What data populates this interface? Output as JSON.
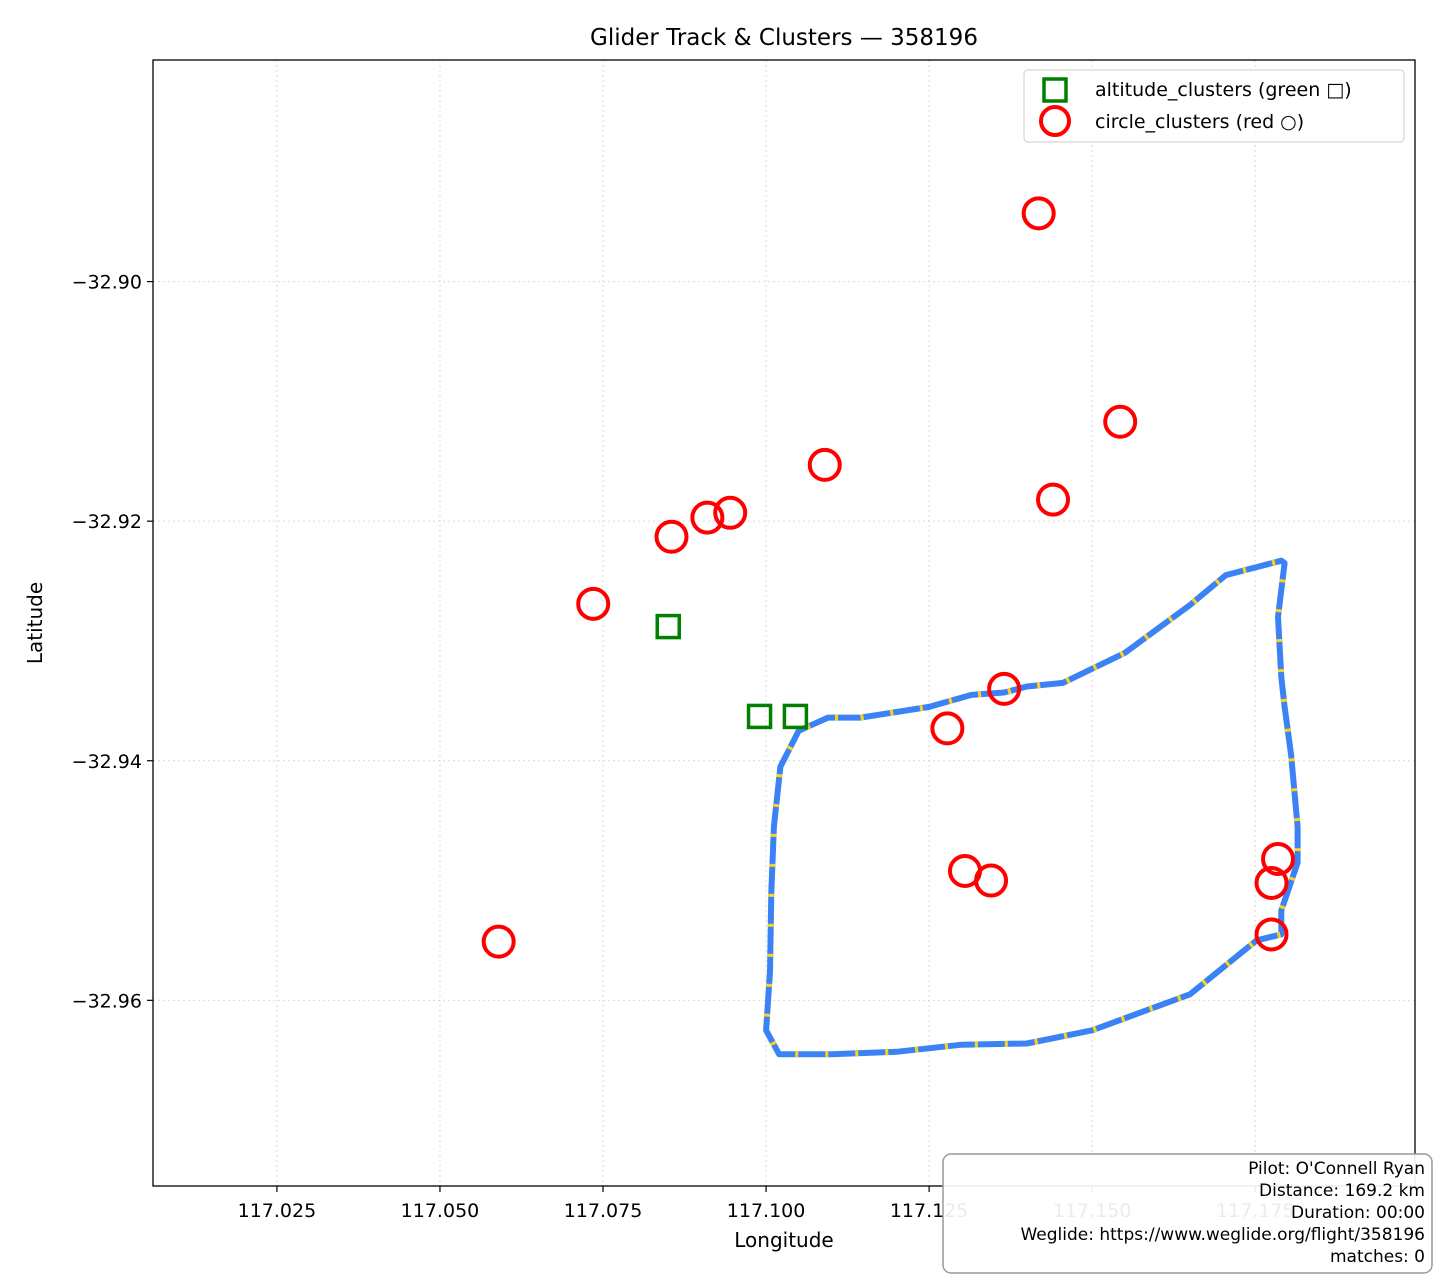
{
  "chart_data": {
    "type": "scatter",
    "title": "Glider Track & Clusters — 358196",
    "xlabel": "Longitude",
    "ylabel": "Latitude",
    "xlim": [
      117.006,
      117.1995
    ],
    "ylim": [
      -32.9755,
      -32.8815
    ],
    "xticks": [
      117.025,
      117.05,
      117.075,
      117.1,
      117.125,
      117.15,
      117.175
    ],
    "xtick_labels": [
      "117.025",
      "117.050",
      "117.075",
      "117.100",
      "117.125",
      "117.150",
      "117.175"
    ],
    "yticks": [
      -32.96,
      -32.94,
      -32.92,
      -32.9
    ],
    "ytick_labels": [
      "−32.96",
      "−32.94",
      "−32.92",
      "−32.90"
    ],
    "grid": true,
    "legend_position": "top-right",
    "colors": {
      "track": "#3b82f6",
      "track_alt": "#ffd21a",
      "altitude": "#008000",
      "circle": "#ff0000"
    },
    "series": [
      {
        "name": "altitude_clusters (green □)",
        "marker": "square",
        "points": [
          [
            117.085,
            -32.9288
          ],
          [
            117.099,
            -32.9363
          ],
          [
            117.1045,
            -32.9363
          ]
        ]
      },
      {
        "name": "circle_clusters (red ○)",
        "marker": "circle",
        "points": [
          [
            117.1418,
            -32.8943
          ],
          [
            117.1543,
            -32.9117
          ],
          [
            117.109,
            -32.9153
          ],
          [
            117.144,
            -32.9182
          ],
          [
            117.0855,
            -32.9213
          ],
          [
            117.091,
            -32.9197
          ],
          [
            117.0945,
            -32.9193
          ],
          [
            117.0735,
            -32.9269
          ],
          [
            117.1365,
            -32.934
          ],
          [
            117.1278,
            -32.9373
          ],
          [
            117.1305,
            -32.9492
          ],
          [
            117.1345,
            -32.95
          ],
          [
            117.1785,
            -32.9482
          ],
          [
            117.1775,
            -32.9502
          ],
          [
            117.1775,
            -32.9545
          ],
          [
            117.059,
            -32.9551
          ]
        ]
      }
    ],
    "track": [
      [
        117.1145,
        -32.9364
      ],
      [
        117.125,
        -32.9355
      ],
      [
        117.1315,
        -32.9345
      ],
      [
        117.1365,
        -32.9343
      ],
      [
        117.14,
        -32.9338
      ],
      [
        117.1455,
        -32.9335
      ],
      [
        117.155,
        -32.931
      ],
      [
        117.165,
        -32.927
      ],
      [
        117.1705,
        -32.9245
      ],
      [
        117.179,
        -32.9233
      ],
      [
        117.1795,
        -32.9235
      ],
      [
        117.1785,
        -32.928
      ],
      [
        117.179,
        -32.933
      ],
      [
        117.1795,
        -32.9355
      ],
      [
        117.1805,
        -32.9395
      ],
      [
        117.1815,
        -32.9455
      ],
      [
        117.1815,
        -32.9485
      ],
      [
        117.179,
        -32.9525
      ],
      [
        117.179,
        -32.9545
      ],
      [
        117.1752,
        -32.955
      ],
      [
        117.165,
        -32.9595
      ],
      [
        117.15,
        -32.9625
      ],
      [
        117.14,
        -32.9636
      ],
      [
        117.13,
        -32.9637
      ],
      [
        117.12,
        -32.9643
      ],
      [
        117.11,
        -32.9645
      ],
      [
        117.102,
        -32.9645
      ],
      [
        117.1,
        -32.9625
      ],
      [
        117.1006,
        -32.9576
      ],
      [
        117.1008,
        -32.951
      ],
      [
        117.1012,
        -32.9455
      ],
      [
        117.1022,
        -32.9405
      ],
      [
        117.105,
        -32.9375
      ],
      [
        117.1095,
        -32.9364
      ],
      [
        117.1145,
        -32.9364
      ]
    ],
    "pilot_label": "Pilot: O'Connell Ryan",
    "distance_label": "Distance: 169.2 km",
    "duration_label": "Duration: 00:00",
    "weglide_label": "Weglide: https://www.weglide.org/flight/358196",
    "matches_label": "matches: 0"
  }
}
